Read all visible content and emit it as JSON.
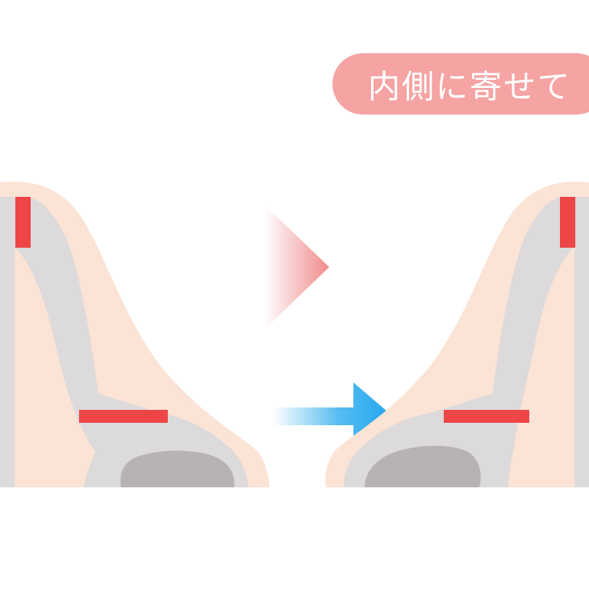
{
  "caption": {
    "text": "内側に寄せて"
  },
  "colors": {
    "skin": "#fbe3d6",
    "cartilage": "#dcdadb",
    "cavity": "#b7b3b3",
    "marker": "#ee4546",
    "transition_arrow": "#f08a8a",
    "direction_arrow": "#1ea6ec",
    "pill": "#f5a3a3"
  },
  "icons": {
    "transition": "chevron-right-icon",
    "direction": "arrow-right-icon"
  }
}
